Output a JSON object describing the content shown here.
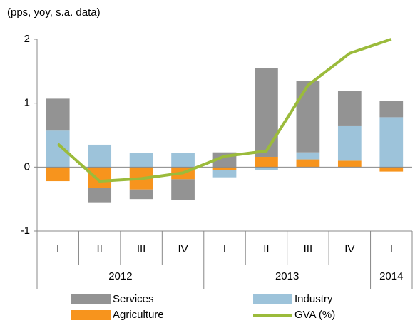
{
  "chart_data": {
    "type": "stacked_bar_line",
    "subtitle": "(pps, yoy, s.a. data)",
    "categories": [
      "I",
      "II",
      "III",
      "IV",
      "I",
      "II",
      "III",
      "IV",
      "I"
    ],
    "years": [
      "2012",
      "2012",
      "2012",
      "2012",
      "2013",
      "2013",
      "2013",
      "2013",
      "2014"
    ],
    "series": [
      {
        "name": "Agriculture",
        "color": "#f7941d",
        "values": [
          -0.22,
          -0.32,
          -0.35,
          -0.19,
          -0.05,
          0.16,
          0.12,
          0.1,
          -0.07
        ]
      },
      {
        "name": "Industry",
        "color": "#9dc3da",
        "values": [
          0.57,
          0.35,
          0.22,
          0.22,
          -0.11,
          -0.05,
          0.11,
          0.54,
          0.78
        ]
      },
      {
        "name": "Services",
        "color": "#939393",
        "values": [
          0.5,
          -0.23,
          -0.15,
          -0.33,
          0.23,
          1.39,
          1.12,
          0.55,
          0.26
        ]
      },
      {
        "name": "GVA (%)",
        "color": "#9bbb3b",
        "type": "line",
        "values": [
          0.36,
          -0.22,
          -0.18,
          -0.09,
          0.17,
          0.25,
          1.28,
          1.78,
          2.0
        ]
      }
    ],
    "ylim": [
      -1,
      2
    ],
    "yticks": [
      -1,
      0,
      1,
      2
    ],
    "grid": false
  }
}
